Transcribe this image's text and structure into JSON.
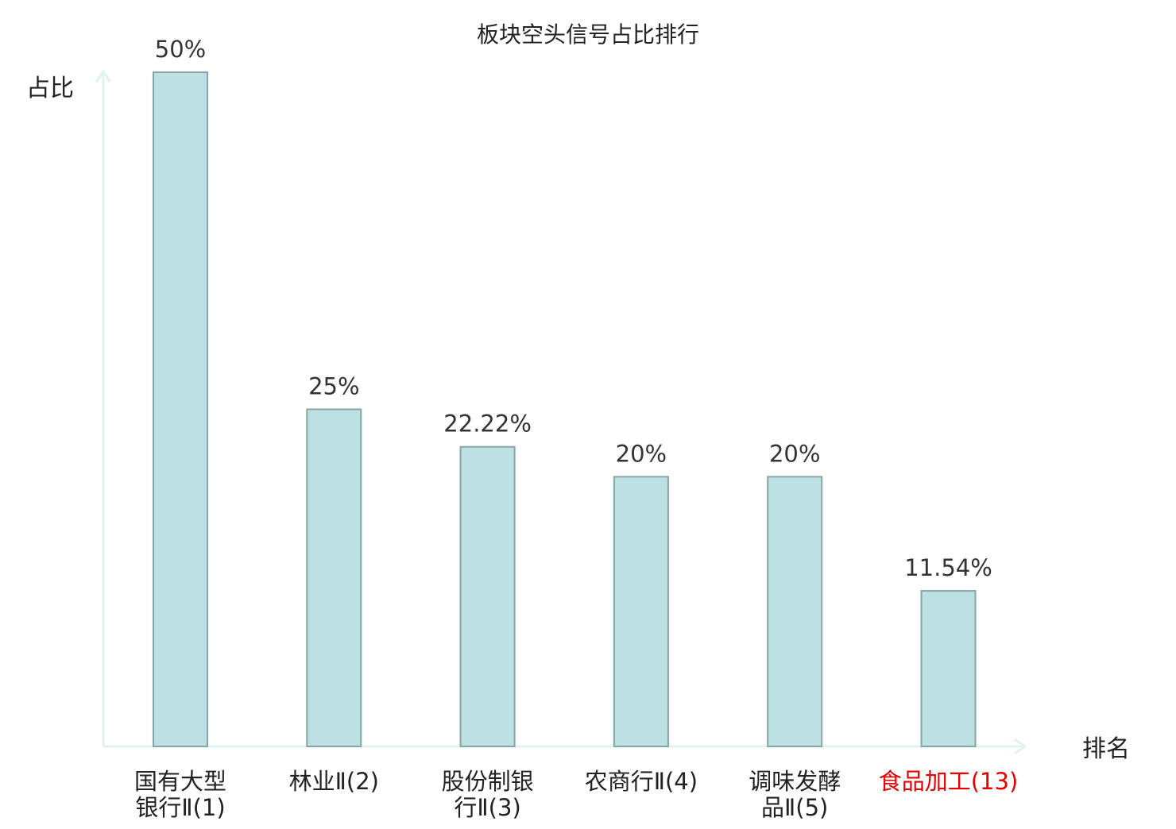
{
  "chart_data": {
    "type": "bar",
    "title": "板块空头信号占比排行",
    "ylabel": "占比",
    "xlabel": "排名",
    "ylim": [
      0,
      50
    ],
    "categories": [
      [
        "国有大型",
        "银行Ⅱ(1)"
      ],
      [
        "林业Ⅱ(2)"
      ],
      [
        "股份制银",
        "行Ⅱ(3)"
      ],
      [
        "农商行Ⅱ(4)"
      ],
      [
        "调味发酵",
        "品Ⅱ(5)"
      ],
      [
        "食品加工(13)"
      ]
    ],
    "values": [
      50,
      25,
      22.22,
      20,
      20,
      11.54
    ],
    "value_labels": [
      "50%",
      "25%",
      "22.22%",
      "20%",
      "20%",
      "11.54%"
    ],
    "highlight_index": 5,
    "colors": {
      "bar_fill": "#bde0e3",
      "bar_stroke": "#86a6a8",
      "axis": "#dff3f0",
      "text": "#333333",
      "title": "#222222",
      "highlight": "#e60000"
    }
  }
}
